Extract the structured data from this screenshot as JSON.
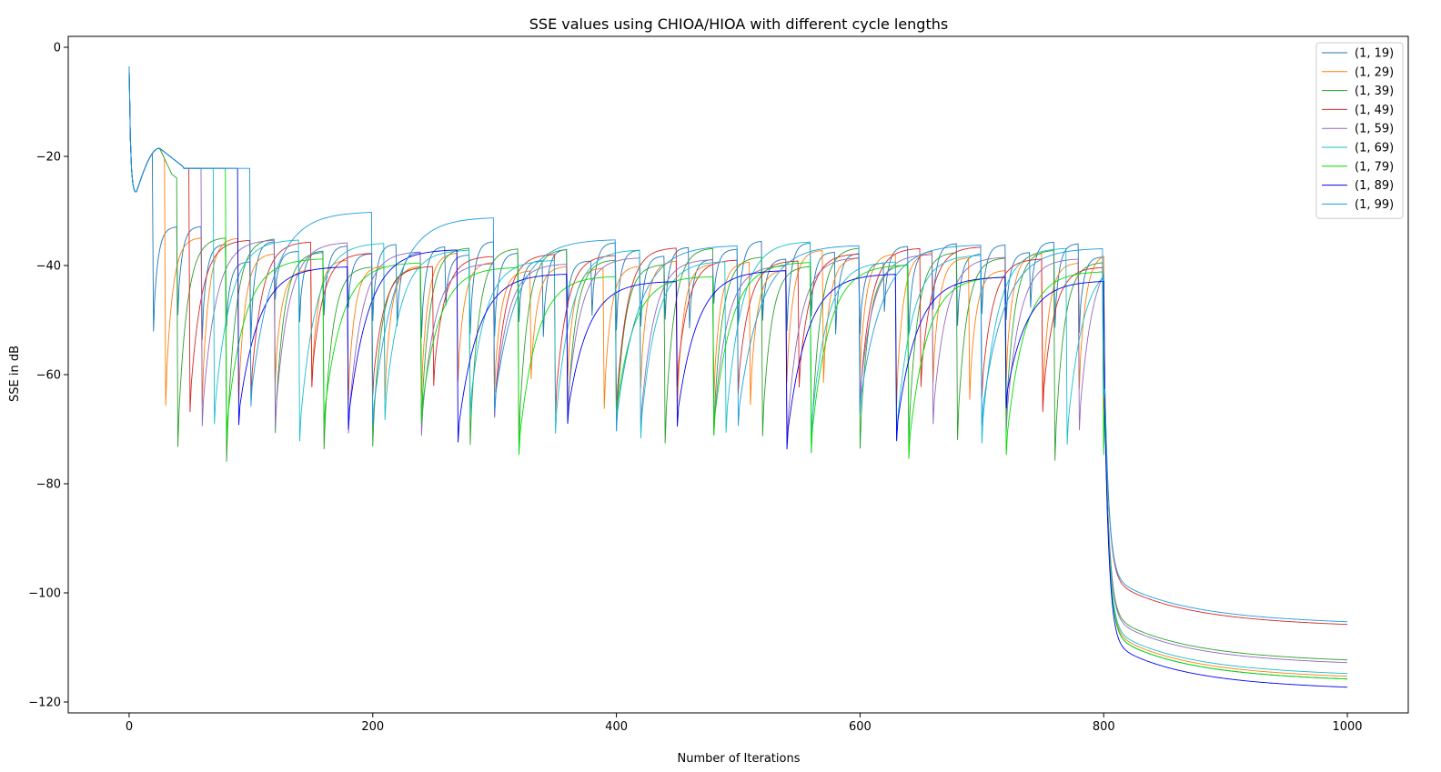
{
  "chart_data": {
    "type": "line",
    "title": "SSE values using CHIOA/HIOA with different cycle lengths",
    "xlabel": "Number of Iterations",
    "ylabel": "SSE in dB",
    "xlim": [
      -50,
      1050
    ],
    "ylim": [
      -122,
      2
    ],
    "xticks": [
      0,
      200,
      400,
      600,
      800,
      1000
    ],
    "yticks": [
      0,
      -20,
      -40,
      -60,
      -80,
      -100,
      -120
    ],
    "xtick_labels": [
      "0",
      "200",
      "400",
      "600",
      "800",
      "1000"
    ],
    "ytick_labels": [
      "0",
      "−20",
      "−40",
      "−60",
      "−80",
      "−100",
      "−120"
    ],
    "grid": false,
    "legend_position": "top-right",
    "iterations": 1000,
    "transition_iteration": 800,
    "series": [
      {
        "name": "(1, 19)",
        "color": "#1f77b4",
        "cycle": 19,
        "dip": -48,
        "peak": -37.5,
        "final": -115
      },
      {
        "name": "(1, 29)",
        "color": "#ff7f0e",
        "cycle": 29,
        "dip": -62,
        "peak": -39,
        "final": -114.5
      },
      {
        "name": "(1, 39)",
        "color": "#2ca02c",
        "cycle": 39,
        "dip": -70,
        "peak": -38.5,
        "final": -111.5
      },
      {
        "name": "(1, 49)",
        "color": "#d62728",
        "cycle": 49,
        "dip": -64,
        "peak": -38.5,
        "final": -105
      },
      {
        "name": "(1, 59)",
        "color": "#9467bd",
        "cycle": 59,
        "dip": -67,
        "peak": -38,
        "final": -112
      },
      {
        "name": "(1, 69)",
        "color": "#17becf",
        "cycle": 69,
        "dip": -67,
        "peak": -37.5,
        "final": -114
      },
      {
        "name": "(1, 79)",
        "color": "#00dd00",
        "cycle": 79,
        "dip": -70,
        "peak": -40.5,
        "final": -115
      },
      {
        "name": "(1, 89)",
        "color": "#0000ee",
        "cycle": 89,
        "dip": -68,
        "peak": -41.5,
        "final": -116.5
      },
      {
        "name": "(1, 99)",
        "color": "#1e9be0",
        "cycle": 99,
        "dip": -65,
        "peak": -35,
        "final": -104.5
      }
    ]
  }
}
